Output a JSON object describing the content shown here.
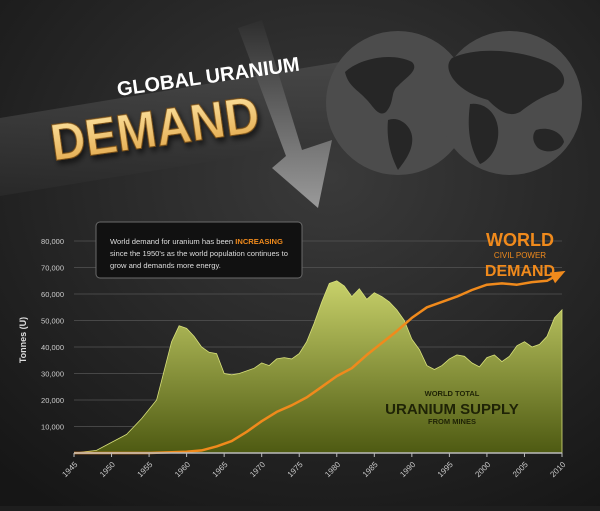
{
  "header": {
    "title_small": "GLOBAL URANIUM",
    "title_big": "DEMAND"
  },
  "callout": {
    "text_before": "World demand for uranium has been ",
    "highlight": "INCREASING",
    "text_after_line1": "since the 1950's as the world population continues to",
    "text_line3": "grow and demands more energy."
  },
  "labels": {
    "demand_line1": "WORLD",
    "demand_line2": "CIVIL POWER",
    "demand_line3": "DEMAND",
    "supply_line1": "WORLD TOTAL",
    "supply_line2": "URANIUM SUPPLY",
    "supply_line3": "FROM MINES"
  },
  "colors": {
    "background": "#1e1e1e",
    "demand": "#f08a1c",
    "supply_top": "#c8d16a",
    "supply_bottom": "#4e5a12",
    "title_gold": "#f2c66a",
    "highlight": "#f08a1c"
  },
  "chart_data": {
    "type": "area",
    "ylabel": "Tonnes (U)",
    "xlim": [
      1945,
      2010
    ],
    "ylim": [
      0,
      80000
    ],
    "yticks": [
      10000,
      20000,
      30000,
      40000,
      50000,
      60000,
      70000,
      80000
    ],
    "ytick_labels": [
      "10,000",
      "20,000",
      "30,000",
      "40,000",
      "50,000",
      "60,000",
      "70,000",
      "80,000"
    ],
    "xticks": [
      1945,
      1950,
      1955,
      1960,
      1965,
      1970,
      1975,
      1980,
      1985,
      1990,
      1995,
      2000,
      2005,
      2010
    ],
    "grid": true,
    "series": [
      {
        "name": "World total uranium supply from mines",
        "kind": "area",
        "x": [
          1945,
          1948,
          1950,
          1952,
          1954,
          1956,
          1958,
          1959,
          1960,
          1961,
          1962,
          1963,
          1964,
          1965,
          1966,
          1967,
          1968,
          1969,
          1970,
          1971,
          1972,
          1973,
          1974,
          1975,
          1976,
          1977,
          1978,
          1979,
          1980,
          1981,
          1982,
          1983,
          1984,
          1985,
          1986,
          1987,
          1988,
          1989,
          1990,
          1991,
          1992,
          1993,
          1994,
          1995,
          1996,
          1997,
          1998,
          1999,
          2000,
          2001,
          2002,
          2003,
          2004,
          2005,
          2006,
          2007,
          2008,
          2009,
          2010
        ],
        "y": [
          0,
          1000,
          4000,
          7000,
          13000,
          20000,
          42000,
          48000,
          47000,
          44000,
          40000,
          38000,
          37500,
          30000,
          29500,
          30000,
          31000,
          32000,
          34000,
          33000,
          35500,
          36000,
          35500,
          37500,
          42000,
          49000,
          57000,
          64000,
          65000,
          63000,
          59000,
          62000,
          58000,
          60500,
          59000,
          57000,
          54000,
          50000,
          43000,
          39000,
          33000,
          31500,
          33000,
          35500,
          37000,
          36500,
          34000,
          32500,
          36000,
          37000,
          34500,
          36500,
          40500,
          42000,
          40000,
          41000,
          44000,
          51000,
          54000
        ]
      },
      {
        "name": "World civil power demand",
        "kind": "line",
        "x": [
          1945,
          1950,
          1955,
          1960,
          1962,
          1964,
          1966,
          1968,
          1970,
          1972,
          1974,
          1976,
          1978,
          1980,
          1982,
          1984,
          1986,
          1988,
          1990,
          1992,
          1994,
          1996,
          1998,
          2000,
          2002,
          2004,
          2006,
          2008,
          2010
        ],
        "y": [
          0,
          0,
          0,
          500,
          1000,
          2500,
          4500,
          8000,
          12000,
          15500,
          18000,
          21000,
          25000,
          29000,
          32000,
          37000,
          41500,
          46000,
          51000,
          55000,
          57000,
          59000,
          61500,
          63500,
          64000,
          63500,
          64500,
          65000,
          68000
        ]
      }
    ]
  }
}
